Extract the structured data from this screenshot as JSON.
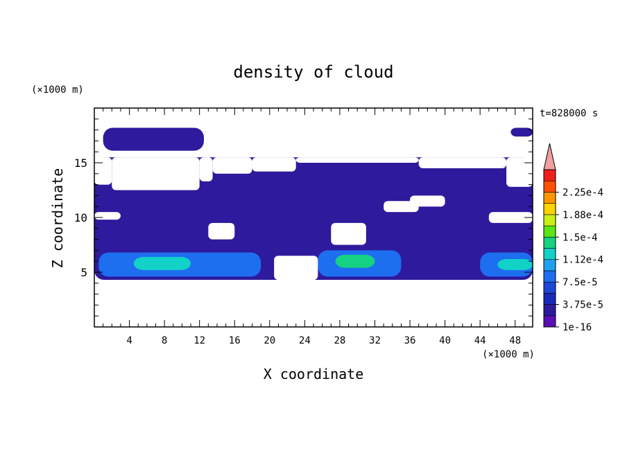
{
  "chart_data": {
    "type": "heatmap",
    "title": "density of cloud",
    "xlabel": "X coordinate",
    "ylabel": "Z coordinate",
    "x_unit": "(×1000 m)",
    "y_unit": "(×1000 m)",
    "time_label": "t=828000 s",
    "xlim": [
      0,
      50
    ],
    "ylim": [
      0,
      20
    ],
    "x_ticks": [
      4,
      8,
      12,
      16,
      20,
      24,
      28,
      32,
      36,
      40,
      44,
      48
    ],
    "y_ticks": [
      5,
      10,
      15
    ],
    "colorbar": {
      "labels": [
        "1e-16",
        "3.75e-5",
        "7.5e-5",
        "1.12e-4",
        "1.5e-4",
        "1.88e-4",
        "2.25e-4"
      ],
      "levels": [
        1e-16,
        1.875e-05,
        3.75e-05,
        5.625e-05,
        7.5e-05,
        9.375e-05,
        0.0001125,
        0.00013125,
        0.00015,
        0.00016875,
        0.0001875,
        0.00020625,
        0.000225,
        0.00024375
      ],
      "colors": [
        "#5a0fb4",
        "#2d1a9c",
        "#1a2ab8",
        "#1e46d8",
        "#1e6ef0",
        "#1ea0f0",
        "#12d2c8",
        "#14d282",
        "#5ae614",
        "#c8f014",
        "#ffd200",
        "#ff9600",
        "#ff5000",
        "#f01e1e"
      ],
      "overflow_color": "#f0a0a0",
      "extend": "max"
    },
    "cloud_regions": [
      {
        "level": 1,
        "x": [
          1,
          12.5
        ],
        "z": [
          16.1,
          18.2
        ]
      },
      {
        "level": 1,
        "x": [
          47.5,
          50
        ],
        "z": [
          17.4,
          18.2
        ]
      },
      {
        "level": 1,
        "x": [
          0,
          50
        ],
        "z": [
          4.3,
          15.5
        ]
      },
      {
        "level": 4,
        "x": [
          0.5,
          19
        ],
        "z": [
          4.6,
          6.8
        ]
      },
      {
        "level": 6,
        "x": [
          4.5,
          11
        ],
        "z": [
          5.2,
          6.4
        ]
      },
      {
        "level": 4,
        "x": [
          25.5,
          35
        ],
        "z": [
          4.6,
          7
        ]
      },
      {
        "level": 7,
        "x": [
          27.5,
          32
        ],
        "z": [
          5.4,
          6.6
        ]
      },
      {
        "level": 4,
        "x": [
          44,
          50
        ],
        "z": [
          4.6,
          6.8
        ]
      },
      {
        "level": 6,
        "x": [
          46,
          50
        ],
        "z": [
          5.2,
          6.2
        ]
      }
    ],
    "clear_regions": [
      {
        "x": [
          0,
          2
        ],
        "z": [
          13,
          15.5
        ]
      },
      {
        "x": [
          2,
          12
        ],
        "z": [
          12.5,
          15.5
        ]
      },
      {
        "x": [
          12,
          13.5
        ],
        "z": [
          13.3,
          15.5
        ]
      },
      {
        "x": [
          13.5,
          18
        ],
        "z": [
          14,
          15.5
        ]
      },
      {
        "x": [
          18,
          23
        ],
        "z": [
          14.2,
          15.5
        ]
      },
      {
        "x": [
          23,
          37
        ],
        "z": [
          15,
          15.5
        ]
      },
      {
        "x": [
          37,
          47
        ],
        "z": [
          14.5,
          15.5
        ]
      },
      {
        "x": [
          47,
          50
        ],
        "z": [
          12.8,
          15.5
        ]
      },
      {
        "x": [
          13,
          16
        ],
        "z": [
          8,
          9.5
        ]
      },
      {
        "x": [
          20.5,
          25.5
        ],
        "z": [
          4.3,
          6.5
        ]
      },
      {
        "x": [
          27,
          31
        ],
        "z": [
          7.5,
          9.5
        ]
      },
      {
        "x": [
          33,
          37
        ],
        "z": [
          10.5,
          11.5
        ]
      },
      {
        "x": [
          45,
          50
        ],
        "z": [
          9.5,
          10.5
        ]
      },
      {
        "x": [
          0,
          3
        ],
        "z": [
          9.8,
          10.5
        ]
      },
      {
        "x": [
          36,
          40
        ],
        "z": [
          11,
          12
        ]
      }
    ]
  }
}
